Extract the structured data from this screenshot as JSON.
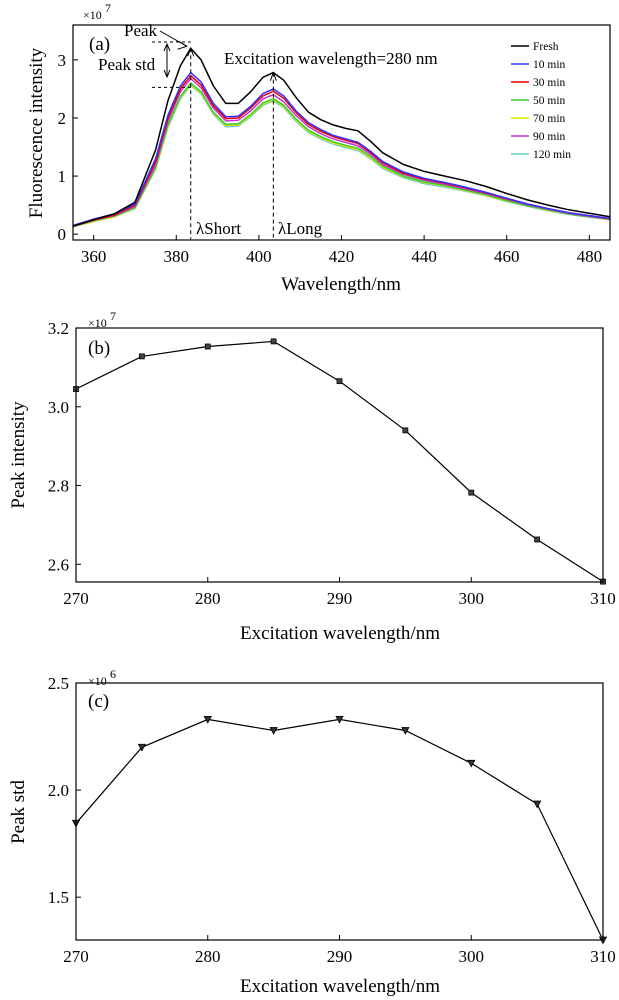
{
  "chart_data": [
    {
      "type": "line",
      "panel_label": "(a)",
      "multiplier_label": "×10",
      "multiplier_exp": "7",
      "xlabel": "Wavelength/nm",
      "ylabel": "Fluorescence intensity",
      "xlim": [
        355,
        485
      ],
      "ylim": [
        -0.1,
        3.6
      ],
      "x_ticks": [
        360,
        380,
        400,
        420,
        440,
        460,
        480
      ],
      "y_ticks": [
        0,
        1,
        2,
        3
      ],
      "annotation": "Excitation wavelength=280 nm",
      "peak_label": "Peak",
      "peak_std_label": "Peak std",
      "short_label": "λShort",
      "long_label": "λLong",
      "grid": false,
      "legend_position": "top-right",
      "x": [
        355,
        360,
        365,
        370,
        375,
        378,
        381,
        383.5,
        386,
        389,
        392,
        395,
        398,
        401,
        403.5,
        406,
        409,
        412,
        415,
        418,
        421,
        424,
        427,
        430,
        435,
        440,
        445,
        450,
        455,
        460,
        465,
        470,
        475,
        480,
        485
      ],
      "series": [
        {
          "name": "Fresh",
          "color": "#000000",
          "values": [
            0.14,
            0.25,
            0.35,
            0.55,
            1.45,
            2.3,
            2.9,
            3.2,
            3.0,
            2.55,
            2.25,
            2.25,
            2.45,
            2.7,
            2.78,
            2.65,
            2.35,
            2.1,
            1.97,
            1.88,
            1.82,
            1.78,
            1.6,
            1.4,
            1.2,
            1.08,
            1.0,
            0.92,
            0.82,
            0.7,
            0.59,
            0.5,
            0.42,
            0.36,
            0.3
          ]
        },
        {
          "name": "10 min",
          "color": "#3333ff",
          "values": [
            0.15,
            0.26,
            0.35,
            0.52,
            1.3,
            2.05,
            2.55,
            2.78,
            2.62,
            2.25,
            2.02,
            2.03,
            2.2,
            2.42,
            2.5,
            2.38,
            2.12,
            1.92,
            1.8,
            1.7,
            1.64,
            1.58,
            1.43,
            1.25,
            1.07,
            0.96,
            0.89,
            0.81,
            0.72,
            0.62,
            0.52,
            0.44,
            0.37,
            0.32,
            0.27
          ]
        },
        {
          "name": "30 min",
          "color": "#e60000",
          "values": [
            0.14,
            0.24,
            0.33,
            0.5,
            1.25,
            2.0,
            2.5,
            2.73,
            2.57,
            2.21,
            1.99,
            2.0,
            2.17,
            2.38,
            2.46,
            2.34,
            2.09,
            1.89,
            1.77,
            1.68,
            1.62,
            1.56,
            1.41,
            1.23,
            1.05,
            0.95,
            0.88,
            0.8,
            0.71,
            0.61,
            0.52,
            0.44,
            0.37,
            0.32,
            0.27
          ]
        },
        {
          "name": "50 min",
          "color": "#33cc33",
          "values": [
            0.13,
            0.23,
            0.31,
            0.46,
            1.15,
            1.88,
            2.37,
            2.6,
            2.45,
            2.1,
            1.89,
            1.9,
            2.06,
            2.26,
            2.33,
            2.22,
            1.98,
            1.79,
            1.68,
            1.59,
            1.53,
            1.48,
            1.34,
            1.17,
            1.0,
            0.9,
            0.84,
            0.76,
            0.68,
            0.58,
            0.49,
            0.42,
            0.35,
            0.3,
            0.26
          ]
        },
        {
          "name": "70 min",
          "color": "#e6e600",
          "values": [
            0.13,
            0.22,
            0.3,
            0.45,
            1.13,
            1.86,
            2.35,
            2.58,
            2.43,
            2.08,
            1.87,
            1.88,
            2.04,
            2.24,
            2.31,
            2.2,
            1.96,
            1.77,
            1.66,
            1.57,
            1.51,
            1.46,
            1.32,
            1.15,
            0.99,
            0.89,
            0.83,
            0.75,
            0.67,
            0.57,
            0.49,
            0.41,
            0.35,
            0.3,
            0.25
          ]
        },
        {
          "name": "90 min",
          "color": "#cc33cc",
          "values": [
            0.14,
            0.24,
            0.32,
            0.48,
            1.2,
            1.95,
            2.45,
            2.68,
            2.52,
            2.17,
            1.95,
            1.96,
            2.12,
            2.33,
            2.4,
            2.28,
            2.04,
            1.85,
            1.73,
            1.64,
            1.58,
            1.52,
            1.38,
            1.2,
            1.03,
            0.93,
            0.86,
            0.78,
            0.7,
            0.6,
            0.51,
            0.43,
            0.36,
            0.31,
            0.26
          ]
        },
        {
          "name": "120 min",
          "color": "#66cccc",
          "values": [
            0.13,
            0.22,
            0.3,
            0.44,
            1.12,
            1.84,
            2.33,
            2.56,
            2.41,
            2.06,
            1.85,
            1.86,
            2.02,
            2.22,
            2.29,
            2.18,
            1.94,
            1.75,
            1.64,
            1.55,
            1.49,
            1.44,
            1.3,
            1.13,
            0.97,
            0.87,
            0.81,
            0.74,
            0.66,
            0.56,
            0.48,
            0.4,
            0.34,
            0.29,
            0.25
          ]
        }
      ]
    },
    {
      "type": "line",
      "panel_label": "(b)",
      "multiplier_label": "×10",
      "multiplier_exp": "7",
      "xlabel": "Excitation wavelength/nm",
      "ylabel": "Peak intensity",
      "xlim": [
        270,
        310
      ],
      "ylim": [
        2.555,
        3.2
      ],
      "x_ticks": [
        270,
        280,
        290,
        300,
        310
      ],
      "y_ticks": [
        2.6,
        2.8,
        3.0,
        3.2
      ],
      "y_tick_labels": [
        "2.6",
        "2.8",
        "3.0",
        "3.2"
      ],
      "marker": "square",
      "grid": false,
      "x": [
        270,
        275,
        280,
        285,
        290,
        295,
        300,
        305,
        310
      ],
      "values": [
        3.045,
        3.128,
        3.153,
        3.166,
        3.065,
        2.94,
        2.782,
        2.663,
        2.556
      ]
    },
    {
      "type": "line",
      "panel_label": "(c)",
      "multiplier_label": "×10",
      "multiplier_exp": "6",
      "xlabel": "Excitation wavelength/nm",
      "ylabel": "Peak std",
      "xlim": [
        270,
        310
      ],
      "ylim": [
        1.3,
        2.5
      ],
      "x_ticks": [
        270,
        280,
        290,
        300,
        310
      ],
      "y_ticks": [
        1.5,
        2.0,
        2.5
      ],
      "y_tick_labels": [
        "1.5",
        "2.0",
        "2.5"
      ],
      "marker": "triangle-down",
      "grid": false,
      "x": [
        270,
        275,
        280,
        285,
        290,
        295,
        300,
        305,
        310
      ],
      "values": [
        1.845,
        2.2,
        2.33,
        2.278,
        2.33,
        2.278,
        2.125,
        1.935,
        1.3
      ]
    }
  ]
}
